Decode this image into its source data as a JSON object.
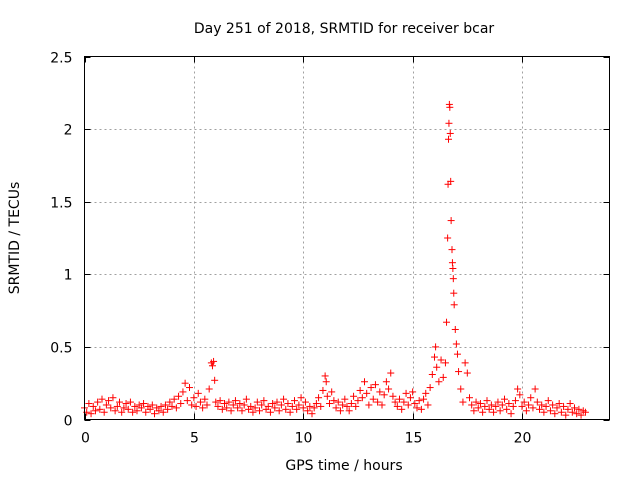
{
  "chart_data": {
    "type": "scatter",
    "title": "Day 251 of 2018, SRMTID for receiver bcar",
    "xlabel": "GPS time / hours",
    "ylabel": "SRMTID / TECUs",
    "xlim": [
      0,
      24
    ],
    "ylim": [
      0,
      2.5
    ],
    "x_ticks": [
      0,
      5,
      10,
      15,
      20
    ],
    "x_tick_labels": [
      "0",
      "5",
      "10",
      "15",
      "20"
    ],
    "y_ticks": [
      0,
      0.5,
      1,
      1.5,
      2,
      2.5
    ],
    "y_tick_labels": [
      "0",
      "0.5",
      "1",
      "1.5",
      "2",
      "2.5"
    ],
    "grid": true,
    "marker": "plus",
    "series": [
      {
        "name": "SRMTID",
        "color": "#ff0000",
        "points": [
          [
            0.0,
            0.08
          ],
          [
            0.1,
            0.05
          ],
          [
            0.2,
            0.11
          ],
          [
            0.3,
            0.04
          ],
          [
            0.4,
            0.09
          ],
          [
            0.5,
            0.06
          ],
          [
            0.6,
            0.12
          ],
          [
            0.7,
            0.07
          ],
          [
            0.8,
            0.14
          ],
          [
            0.9,
            0.05
          ],
          [
            1.0,
            0.1
          ],
          [
            1.1,
            0.13
          ],
          [
            1.2,
            0.08
          ],
          [
            1.3,
            0.15
          ],
          [
            1.4,
            0.06
          ],
          [
            1.5,
            0.09
          ],
          [
            1.6,
            0.12
          ],
          [
            1.7,
            0.05
          ],
          [
            1.8,
            0.08
          ],
          [
            1.9,
            0.11
          ],
          [
            2.0,
            0.07
          ],
          [
            2.1,
            0.12
          ],
          [
            2.2,
            0.05
          ],
          [
            2.3,
            0.09
          ],
          [
            2.4,
            0.06
          ],
          [
            2.5,
            0.1
          ],
          [
            2.6,
            0.08
          ],
          [
            2.7,
            0.11
          ],
          [
            2.8,
            0.05
          ],
          [
            2.9,
            0.09
          ],
          [
            3.0,
            0.07
          ],
          [
            3.1,
            0.1
          ],
          [
            3.2,
            0.04
          ],
          [
            3.3,
            0.08
          ],
          [
            3.4,
            0.06
          ],
          [
            3.5,
            0.09
          ],
          [
            3.6,
            0.05
          ],
          [
            3.7,
            0.1
          ],
          [
            3.8,
            0.07
          ],
          [
            3.9,
            0.12
          ],
          [
            4.0,
            0.09
          ],
          [
            4.1,
            0.14
          ],
          [
            4.2,
            0.08
          ],
          [
            4.3,
            0.16
          ],
          [
            4.4,
            0.11
          ],
          [
            4.5,
            0.19
          ],
          [
            4.6,
            0.25
          ],
          [
            4.7,
            0.13
          ],
          [
            4.8,
            0.22
          ],
          [
            4.9,
            0.1
          ],
          [
            5.0,
            0.15
          ],
          [
            5.1,
            0.09
          ],
          [
            5.2,
            0.18
          ],
          [
            5.3,
            0.12
          ],
          [
            5.4,
            0.08
          ],
          [
            5.5,
            0.14
          ],
          [
            5.6,
            0.1
          ],
          [
            5.7,
            0.21
          ],
          [
            5.8,
            0.39
          ],
          [
            5.85,
            0.37
          ],
          [
            5.9,
            0.4
          ],
          [
            5.95,
            0.27
          ],
          [
            6.0,
            0.12
          ],
          [
            6.1,
            0.09
          ],
          [
            6.2,
            0.13
          ],
          [
            6.3,
            0.07
          ],
          [
            6.4,
            0.11
          ],
          [
            6.5,
            0.08
          ],
          [
            6.6,
            0.12
          ],
          [
            6.7,
            0.06
          ],
          [
            6.8,
            0.1
          ],
          [
            6.9,
            0.13
          ],
          [
            7.0,
            0.08
          ],
          [
            7.1,
            0.11
          ],
          [
            7.2,
            0.06
          ],
          [
            7.3,
            0.1
          ],
          [
            7.4,
            0.14
          ],
          [
            7.5,
            0.07
          ],
          [
            7.6,
            0.09
          ],
          [
            7.7,
            0.05
          ],
          [
            7.8,
            0.08
          ],
          [
            7.9,
            0.12
          ],
          [
            8.0,
            0.06
          ],
          [
            8.1,
            0.1
          ],
          [
            8.2,
            0.13
          ],
          [
            8.3,
            0.07
          ],
          [
            8.4,
            0.09
          ],
          [
            8.5,
            0.05
          ],
          [
            8.6,
            0.11
          ],
          [
            8.7,
            0.08
          ],
          [
            8.8,
            0.12
          ],
          [
            8.9,
            0.06
          ],
          [
            9.0,
            0.1
          ],
          [
            9.1,
            0.14
          ],
          [
            9.2,
            0.07
          ],
          [
            9.3,
            0.11
          ],
          [
            9.4,
            0.05
          ],
          [
            9.5,
            0.09
          ],
          [
            9.6,
            0.13
          ],
          [
            9.7,
            0.07
          ],
          [
            9.8,
            0.1
          ],
          [
            9.9,
            0.15
          ],
          [
            10.0,
            0.08
          ],
          [
            10.1,
            0.12
          ],
          [
            10.2,
            0.06
          ],
          [
            10.3,
            0.09
          ],
          [
            10.4,
            0.04
          ],
          [
            10.5,
            0.08
          ],
          [
            10.6,
            0.11
          ],
          [
            10.7,
            0.15
          ],
          [
            10.8,
            0.09
          ],
          [
            10.9,
            0.2
          ],
          [
            11.0,
            0.3
          ],
          [
            11.05,
            0.26
          ],
          [
            11.1,
            0.16
          ],
          [
            11.2,
            0.11
          ],
          [
            11.3,
            0.19
          ],
          [
            11.4,
            0.13
          ],
          [
            11.5,
            0.08
          ],
          [
            11.6,
            0.12
          ],
          [
            11.7,
            0.06
          ],
          [
            11.8,
            0.1
          ],
          [
            11.9,
            0.14
          ],
          [
            12.0,
            0.09
          ],
          [
            12.1,
            0.06
          ],
          [
            12.2,
            0.11
          ],
          [
            12.3,
            0.16
          ],
          [
            12.4,
            0.09
          ],
          [
            12.5,
            0.13
          ],
          [
            12.6,
            0.2
          ],
          [
            12.7,
            0.15
          ],
          [
            12.8,
            0.26
          ],
          [
            12.9,
            0.18
          ],
          [
            13.0,
            0.1
          ],
          [
            13.1,
            0.22
          ],
          [
            13.2,
            0.14
          ],
          [
            13.3,
            0.24
          ],
          [
            13.4,
            0.12
          ],
          [
            13.5,
            0.19
          ],
          [
            13.6,
            0.1
          ],
          [
            13.7,
            0.17
          ],
          [
            13.8,
            0.26
          ],
          [
            13.9,
            0.21
          ],
          [
            14.0,
            0.32
          ],
          [
            14.1,
            0.16
          ],
          [
            14.2,
            0.12
          ],
          [
            14.3,
            0.09
          ],
          [
            14.4,
            0.14
          ],
          [
            14.5,
            0.07
          ],
          [
            14.6,
            0.12
          ],
          [
            14.7,
            0.18
          ],
          [
            14.8,
            0.1
          ],
          [
            14.9,
            0.15
          ],
          [
            15.0,
            0.19
          ],
          [
            15.1,
            0.11
          ],
          [
            15.2,
            0.08
          ],
          [
            15.3,
            0.13
          ],
          [
            15.4,
            0.07
          ],
          [
            15.5,
            0.14
          ],
          [
            15.6,
            0.18
          ],
          [
            15.7,
            0.1
          ],
          [
            15.8,
            0.22
          ],
          [
            15.9,
            0.31
          ],
          [
            16.0,
            0.43
          ],
          [
            16.05,
            0.5
          ],
          [
            16.1,
            0.36
          ],
          [
            16.2,
            0.26
          ],
          [
            16.3,
            0.41
          ],
          [
            16.4,
            0.29
          ],
          [
            16.5,
            0.39
          ],
          [
            16.55,
            0.67
          ],
          [
            16.6,
            1.25
          ],
          [
            16.62,
            1.62
          ],
          [
            16.64,
            1.93
          ],
          [
            16.66,
            2.04
          ],
          [
            16.68,
            2.17
          ],
          [
            16.7,
            2.15
          ],
          [
            16.72,
            1.97
          ],
          [
            16.74,
            1.64
          ],
          [
            16.76,
            1.37
          ],
          [
            16.8,
            1.17
          ],
          [
            16.82,
            1.08
          ],
          [
            16.84,
            1.04
          ],
          [
            16.86,
            0.97
          ],
          [
            16.88,
            0.87
          ],
          [
            16.9,
            0.79
          ],
          [
            16.95,
            0.62
          ],
          [
            17.0,
            0.52
          ],
          [
            17.05,
            0.45
          ],
          [
            17.1,
            0.33
          ],
          [
            17.2,
            0.21
          ],
          [
            17.3,
            0.12
          ],
          [
            17.4,
            0.39
          ],
          [
            17.5,
            0.32
          ],
          [
            17.6,
            0.15
          ],
          [
            17.7,
            0.1
          ],
          [
            17.8,
            0.06
          ],
          [
            17.9,
            0.12
          ],
          [
            18.0,
            0.08
          ],
          [
            18.1,
            0.11
          ],
          [
            18.2,
            0.05
          ],
          [
            18.3,
            0.09
          ],
          [
            18.4,
            0.13
          ],
          [
            18.5,
            0.07
          ],
          [
            18.6,
            0.1
          ],
          [
            18.7,
            0.05
          ],
          [
            18.8,
            0.09
          ],
          [
            18.9,
            0.12
          ],
          [
            19.0,
            0.06
          ],
          [
            19.1,
            0.1
          ],
          [
            19.2,
            0.14
          ],
          [
            19.3,
            0.07
          ],
          [
            19.4,
            0.11
          ],
          [
            19.5,
            0.04
          ],
          [
            19.6,
            0.09
          ],
          [
            19.7,
            0.13
          ],
          [
            19.8,
            0.21
          ],
          [
            19.9,
            0.17
          ],
          [
            20.0,
            0.09
          ],
          [
            20.1,
            0.12
          ],
          [
            20.2,
            0.06
          ],
          [
            20.3,
            0.1
          ],
          [
            20.4,
            0.15
          ],
          [
            20.5,
            0.08
          ],
          [
            20.6,
            0.21
          ],
          [
            20.7,
            0.12
          ],
          [
            20.8,
            0.07
          ],
          [
            20.9,
            0.1
          ],
          [
            21.0,
            0.05
          ],
          [
            21.1,
            0.09
          ],
          [
            21.2,
            0.13
          ],
          [
            21.3,
            0.06
          ],
          [
            21.4,
            0.1
          ],
          [
            21.5,
            0.04
          ],
          [
            21.6,
            0.08
          ],
          [
            21.7,
            0.11
          ],
          [
            21.8,
            0.05
          ],
          [
            21.9,
            0.09
          ],
          [
            22.0,
            0.03
          ],
          [
            22.1,
            0.07
          ],
          [
            22.2,
            0.11
          ],
          [
            22.3,
            0.05
          ],
          [
            22.4,
            0.08
          ],
          [
            22.5,
            0.04
          ],
          [
            22.6,
            0.07
          ],
          [
            22.7,
            0.03
          ],
          [
            22.8,
            0.06
          ],
          [
            22.9,
            0.05
          ]
        ]
      }
    ]
  }
}
